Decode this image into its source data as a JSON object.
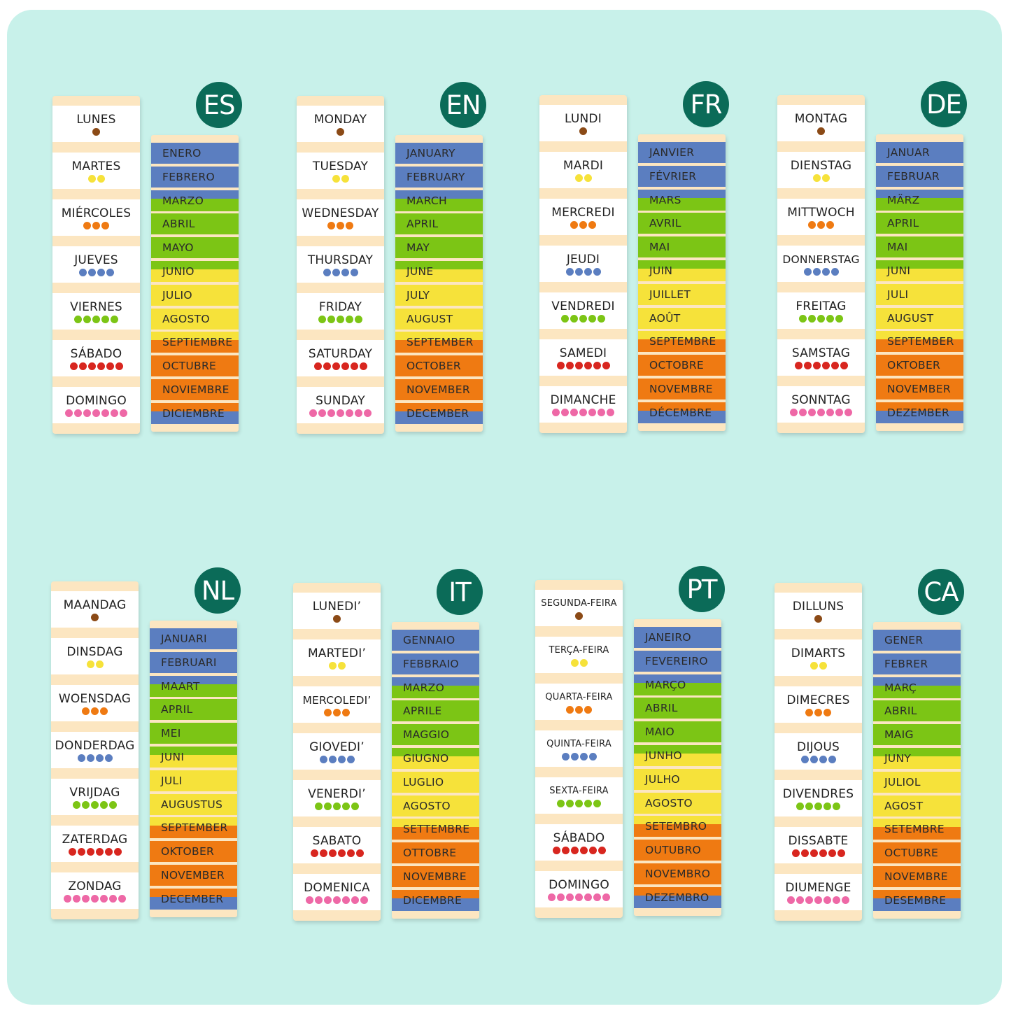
{
  "colors": {
    "background": "#c8f1ea",
    "badge": "#0b6b58",
    "brown": "#8b4a16",
    "yellow": "#f6e23a",
    "orange": "#ef7a12",
    "blue": "#5b7ec0",
    "green": "#7cc515",
    "red": "#d8261f",
    "pink": "#ee68a6"
  },
  "calendars": [
    {
      "code": "ES",
      "days": [
        "LUNES",
        "MARTES",
        "MIÉRCOLES",
        "JUEVES",
        "VIERNES",
        "SÁBADO",
        "DOMINGO"
      ],
      "months": [
        "ENERO",
        "FEBRERO",
        "MARZO",
        "ABRIL",
        "MAYO",
        "JUNIO",
        "JULIO",
        "AGOSTO",
        "SEPTIEMBRE",
        "OCTUBRE",
        "NOVIEMBRE",
        "DICIEMBRE"
      ]
    },
    {
      "code": "EN",
      "days": [
        "MONDAY",
        "TUESDAY",
        "WEDNESDAY",
        "THURSDAY",
        "FRIDAY",
        "SATURDAY",
        "SUNDAY"
      ],
      "months": [
        "JANUARY",
        "FEBRUARY",
        "MARCH",
        "APRIL",
        "MAY",
        "JUNE",
        "JULY",
        "AUGUST",
        "SEPTEMBER",
        "OCTOBER",
        "NOVEMBER",
        "DECEMBER"
      ]
    },
    {
      "code": "FR",
      "days": [
        "LUNDI",
        "MARDI",
        "MERCREDI",
        "JEUDI",
        "VENDREDI",
        "SAMEDI",
        "DIMANCHE"
      ],
      "months": [
        "JANVIER",
        "FÉVRIER",
        "MARS",
        "AVRIL",
        "MAI",
        "JUIN",
        "JUILLET",
        "AOÛT",
        "SEPTEMBRE",
        "OCTOBRE",
        "NOVEMBRE",
        "DÉCEMBRE"
      ]
    },
    {
      "code": "DE",
      "days": [
        "MONTAG",
        "DIENSTAG",
        "MITTWOCH",
        "DONNERSTAG",
        "FREITAG",
        "SAMSTAG",
        "SONNTAG"
      ],
      "months": [
        "JANUAR",
        "FEBRUAR",
        "MÄRZ",
        "APRIL",
        "MAI",
        "JUNI",
        "JULI",
        "AUGUST",
        "SEPTEMBER",
        "OKTOBER",
        "NOVEMBER",
        "DEZEMBER"
      ]
    },
    {
      "code": "NL",
      "days": [
        "MAANDAG",
        "DINSDAG",
        "WOENSDAG",
        "DONDERDAG",
        "VRIJDAG",
        "ZATERDAG",
        "ZONDAG"
      ],
      "months": [
        "JANUARI",
        "FEBRUARI",
        "MAART",
        "APRIL",
        "MEI",
        "JUNI",
        "JULI",
        "AUGUSTUS",
        "SEPTEMBER",
        "OKTOBER",
        "NOVEMBER",
        "DECEMBER"
      ]
    },
    {
      "code": "IT",
      "days": [
        "LUNEDI’",
        "MARTEDI’",
        "MERCOLEDI’",
        "GIOVEDI’",
        "VENERDI’",
        "SABATO",
        "DOMENICA"
      ],
      "months": [
        "GENNAIO",
        "FEBBRAIO",
        "MARZO",
        "APRILE",
        "MAGGIO",
        "GIUGNO",
        "LUGLIO",
        "AGOSTO",
        "SETTEMBRE",
        "OTTOBRE",
        "NOVEMBRE",
        "DICEMBRE"
      ]
    },
    {
      "code": "PT",
      "days": [
        "SEGUNDA-FEIRA",
        "TERÇA-FEIRA",
        "QUARTA-FEIRA",
        "QUINTA-FEIRA",
        "SEXTA-FEIRA",
        "SÁBADO",
        "DOMINGO"
      ],
      "months": [
        "JANEIRO",
        "FEVEREIRO",
        "MARÇO",
        "ABRIL",
        "MAIO",
        "JUNHO",
        "JULHO",
        "AGOSTO",
        "SETEMBRO",
        "OUTUBRO",
        "NOVEMBRO",
        "DEZEMBRO"
      ]
    },
    {
      "code": "CA",
      "days": [
        "DILLUNS",
        "DIMARTS",
        "DIMECRES",
        "DIJOUS",
        "DIVENDRES",
        "DISSABTE",
        "DIUMENGE"
      ],
      "months": [
        "GENER",
        "FEBRER",
        "MARÇ",
        "ABRIL",
        "MAIG",
        "JUNY",
        "JULIOL",
        "AGOST",
        "SETEMBRE",
        "OCTUBRE",
        "NOVEMBRE",
        "DESEMBRE"
      ]
    }
  ]
}
